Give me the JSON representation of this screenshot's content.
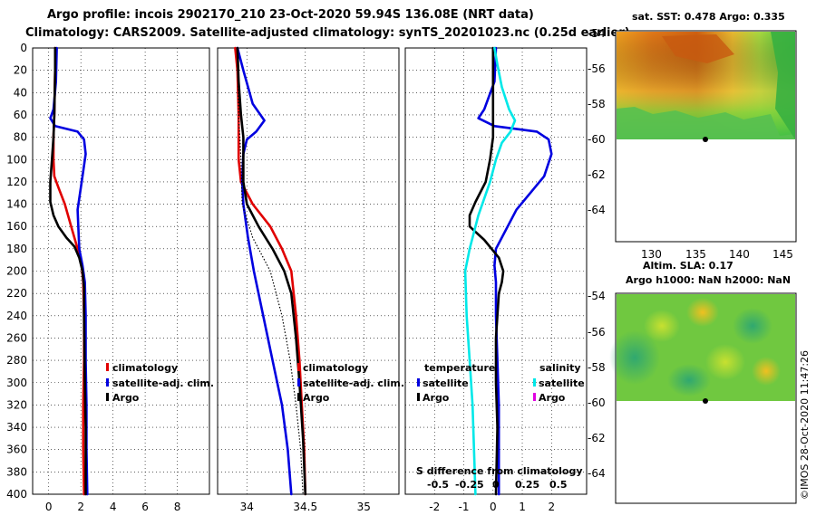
{
  "title_line1": "Argo profile: incois 2902170_210 23-Oct-2020 59.94S 136.08E (NRT data)",
  "title_line2": "Climatology: CARS2009. Satellite-adjusted climatology: synTS_20201023.nc (0.25d earlier)",
  "copyright": "©IMOS 28-Oct-2020 11:47:26",
  "colors": {
    "climatology": "#e00000",
    "satellite": "#0000e0",
    "argo": "#000000",
    "sal_satellite": "#00e8e8",
    "sal_argo": "#e000e0"
  },
  "chart_data": [
    {
      "type": "line",
      "name": "temperature_profile",
      "ylim": [
        400,
        0
      ],
      "yticks": [
        0,
        20,
        40,
        60,
        80,
        100,
        120,
        140,
        160,
        180,
        200,
        220,
        240,
        260,
        280,
        300,
        320,
        340,
        360,
        380,
        400
      ],
      "xlim": [
        -1,
        10
      ],
      "xticks": [
        0,
        2,
        4,
        6,
        8
      ],
      "xticklabels": [
        "0",
        "2",
        "4",
        "6",
        "8"
      ],
      "legend": [
        "climatology",
        "satellite-adj. clim.",
        "Argo"
      ],
      "series": [
        {
          "name": "climatology",
          "points": [
            [
              0.4,
              0
            ],
            [
              0.4,
              20
            ],
            [
              0.35,
              60
            ],
            [
              0.3,
              80
            ],
            [
              0.3,
              100
            ],
            [
              0.35,
              115
            ],
            [
              0.6,
              125
            ],
            [
              1.0,
              140
            ],
            [
              1.4,
              160
            ],
            [
              1.8,
              180
            ],
            [
              2.05,
              195
            ],
            [
              2.15,
              210
            ],
            [
              2.2,
              240
            ],
            [
              2.2,
              280
            ],
            [
              2.15,
              320
            ],
            [
              2.15,
              360
            ],
            [
              2.2,
              400
            ]
          ]
        },
        {
          "name": "satellite-adj. clim.",
          "points": [
            [
              0.5,
              0
            ],
            [
              0.45,
              30
            ],
            [
              0.3,
              55
            ],
            [
              0.1,
              63
            ],
            [
              0.4,
              70
            ],
            [
              1.8,
              75
            ],
            [
              2.2,
              82
            ],
            [
              2.3,
              95
            ],
            [
              2.1,
              115
            ],
            [
              1.8,
              145
            ],
            [
              1.9,
              180
            ],
            [
              2.1,
              195
            ],
            [
              2.25,
              210
            ],
            [
              2.3,
              240
            ],
            [
              2.3,
              280
            ],
            [
              2.35,
              320
            ],
            [
              2.35,
              360
            ],
            [
              2.4,
              400
            ]
          ]
        },
        {
          "name": "Argo",
          "points": [
            [
              0.4,
              0
            ],
            [
              0.4,
              20
            ],
            [
              0.35,
              60
            ],
            [
              0.3,
              80
            ],
            [
              0.2,
              100
            ],
            [
              0.1,
              120
            ],
            [
              0.1,
              138
            ],
            [
              0.3,
              150
            ],
            [
              0.6,
              160
            ],
            [
              1.1,
              170
            ],
            [
              1.6,
              178
            ],
            [
              1.9,
              188
            ],
            [
              2.1,
              200
            ],
            [
              2.2,
              215
            ],
            [
              2.2,
              240
            ],
            [
              2.25,
              300
            ],
            [
              2.3,
              340
            ],
            [
              2.3,
              400
            ]
          ]
        }
      ]
    },
    {
      "type": "line",
      "name": "salinity_profile",
      "ylim": [
        400,
        0
      ],
      "xlim": [
        33.75,
        35.3
      ],
      "xticks": [
        34,
        34.5,
        35
      ],
      "xticklabels": [
        "34",
        "34.5",
        "35"
      ],
      "legend": [
        "climatology",
        "satellite-adj. clim.",
        "Argo"
      ],
      "series": [
        {
          "name": "climatology",
          "points": [
            [
              33.9,
              0
            ],
            [
              33.92,
              20
            ],
            [
              33.93,
              60
            ],
            [
              33.93,
              100
            ],
            [
              33.95,
              120
            ],
            [
              34.05,
              140
            ],
            [
              34.2,
              160
            ],
            [
              34.3,
              180
            ],
            [
              34.38,
              200
            ],
            [
              34.42,
              240
            ],
            [
              34.45,
              280
            ],
            [
              34.47,
              320
            ],
            [
              34.49,
              360
            ],
            [
              34.5,
              400
            ]
          ]
        },
        {
          "name": "satellite-adj. clim.",
          "points": [
            [
              33.92,
              0
            ],
            [
              33.97,
              20
            ],
            [
              34.05,
              50
            ],
            [
              34.15,
              65
            ],
            [
              34.08,
              75
            ],
            [
              34.0,
              82
            ],
            [
              33.97,
              95
            ],
            [
              33.96,
              120
            ],
            [
              33.97,
              140
            ],
            [
              34.01,
              170
            ],
            [
              34.06,
              200
            ],
            [
              34.14,
              240
            ],
            [
              34.22,
              280
            ],
            [
              34.3,
              320
            ],
            [
              34.35,
              360
            ],
            [
              34.38,
              400
            ]
          ]
        },
        {
          "name": "Argo",
          "points": [
            [
              33.92,
              0
            ],
            [
              33.93,
              30
            ],
            [
              33.95,
              60
            ],
            [
              33.97,
              80
            ],
            [
              33.97,
              100
            ],
            [
              33.97,
              120
            ],
            [
              34.0,
              140
            ],
            [
              34.1,
              160
            ],
            [
              34.22,
              180
            ],
            [
              34.32,
              200
            ],
            [
              34.38,
              220
            ],
            [
              34.42,
              260
            ],
            [
              34.45,
              300
            ],
            [
              34.48,
              350
            ],
            [
              34.5,
              400
            ]
          ]
        }
      ]
    },
    {
      "type": "line",
      "name": "difference_from_climatology",
      "ylim": [
        400,
        0
      ],
      "xlim": [
        -3,
        3.2
      ],
      "xticks": [
        -2,
        -1,
        0,
        1,
        2
      ],
      "xticklabels": [
        "-2",
        "-1",
        "0",
        "1",
        "2"
      ],
      "secondary_label": "S difference from climatology",
      "secondary_ticks": [
        "-0.5",
        "-0.25",
        "0",
        "0.25",
        "0.5"
      ],
      "legend_temperature": [
        "temperature",
        "satellite",
        "Argo"
      ],
      "legend_salinity": [
        "salinity",
        "satellite",
        "Argo"
      ],
      "series": [
        {
          "name": "temperature satellite",
          "points": [
            [
              0.1,
              0
            ],
            [
              0.05,
              30
            ],
            [
              -0.3,
              55
            ],
            [
              -0.5,
              63
            ],
            [
              0.05,
              70
            ],
            [
              1.5,
              75
            ],
            [
              1.9,
              82
            ],
            [
              2.0,
              95
            ],
            [
              1.75,
              115
            ],
            [
              0.8,
              145
            ],
            [
              0.1,
              180
            ],
            [
              0.05,
              195
            ],
            [
              0.1,
              210
            ],
            [
              0.1,
              240
            ],
            [
              0.15,
              280
            ],
            [
              0.2,
              320
            ],
            [
              0.2,
              360
            ],
            [
              0.2,
              400
            ]
          ]
        },
        {
          "name": "temperature Argo",
          "points": [
            [
              0.0,
              0
            ],
            [
              0.0,
              30
            ],
            [
              0.0,
              60
            ],
            [
              0.0,
              80
            ],
            [
              -0.1,
              100
            ],
            [
              -0.25,
              120
            ],
            [
              -0.6,
              138
            ],
            [
              -0.8,
              150
            ],
            [
              -0.8,
              160
            ],
            [
              -0.3,
              172
            ],
            [
              0.2,
              188
            ],
            [
              0.35,
              200
            ],
            [
              0.3,
              210
            ],
            [
              0.2,
              220
            ],
            [
              0.1,
              260
            ],
            [
              0.1,
              300
            ],
            [
              0.15,
              340
            ],
            [
              0.1,
              400
            ]
          ]
        },
        {
          "name": "salinity satellite",
          "points": [
            [
              0.05,
              0
            ],
            [
              0.15,
              15
            ],
            [
              0.3,
              35
            ],
            [
              0.55,
              55
            ],
            [
              0.75,
              65
            ],
            [
              0.6,
              75
            ],
            [
              0.3,
              85
            ],
            [
              0.1,
              100
            ],
            [
              -0.1,
              120
            ],
            [
              -0.5,
              150
            ],
            [
              -0.8,
              180
            ],
            [
              -0.95,
              200
            ],
            [
              -0.9,
              240
            ],
            [
              -0.8,
              280
            ],
            [
              -0.7,
              320
            ],
            [
              -0.65,
              360
            ],
            [
              -0.6,
              400
            ]
          ]
        }
      ]
    }
  ],
  "maps": [
    {
      "name": "sst_map",
      "title": "sat. SST: 0.478 Argo: 0.335",
      "lat_ticks": [
        "-54",
        "-56",
        "-58",
        "-60",
        "-62",
        "-64"
      ],
      "lon_ticks": [
        "130",
        "135",
        "140",
        "145"
      ]
    },
    {
      "name": "sla_map",
      "title_line1": "Altim. SLA: 0.17",
      "title_line2": "Argo h1000: NaN h2000: NaN",
      "lat_ticks": [
        "-54",
        "-56",
        "-58",
        "-60",
        "-62",
        "-64"
      ]
    }
  ]
}
